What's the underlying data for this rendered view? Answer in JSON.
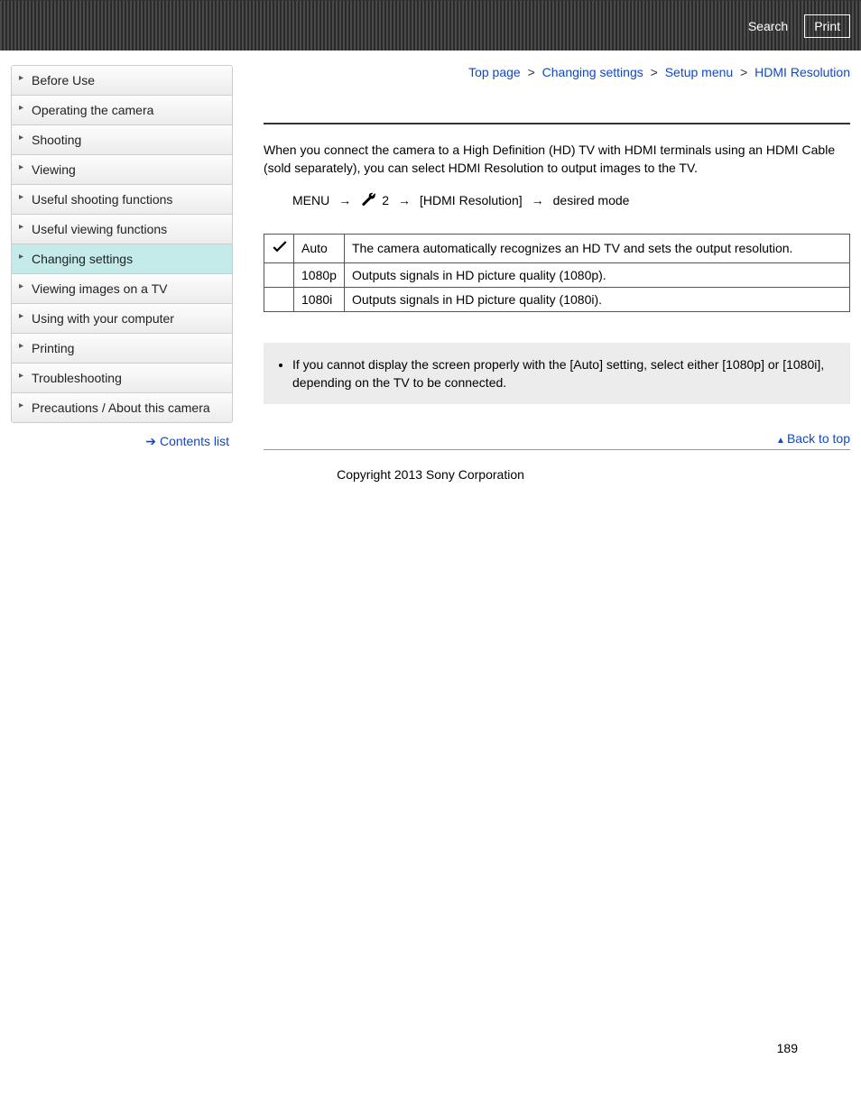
{
  "topbar": {
    "search": "Search",
    "print": "Print"
  },
  "sidebar": {
    "items": [
      {
        "label": "Before Use"
      },
      {
        "label": "Operating the camera"
      },
      {
        "label": "Shooting"
      },
      {
        "label": "Viewing"
      },
      {
        "label": "Useful shooting functions"
      },
      {
        "label": "Useful viewing functions"
      },
      {
        "label": "Changing settings",
        "active": true
      },
      {
        "label": "Viewing images on a TV"
      },
      {
        "label": "Using with your computer"
      },
      {
        "label": "Printing"
      },
      {
        "label": "Troubleshooting"
      },
      {
        "label": "Precautions / About this camera"
      }
    ],
    "contents_list": "Contents list"
  },
  "breadcrumb": {
    "items": [
      "Top page",
      "Changing settings",
      "Setup menu"
    ],
    "current": "HDMI Resolution",
    "sep": ">"
  },
  "body": {
    "intro": "When you connect the camera to a High Definition (HD) TV with HDMI terminals using an HDMI Cable (sold separately), you can select HDMI Resolution to output images to the TV.",
    "path_menu": "MENU",
    "path_num": "2",
    "path_item": "[HDMI Resolution]",
    "path_target": "desired mode"
  },
  "table": {
    "rows": [
      {
        "has_check": true,
        "label": "Auto",
        "desc": "The camera automatically recognizes an HD TV and sets the output resolution."
      },
      {
        "has_check": false,
        "label": "1080p",
        "desc": "Outputs signals in HD picture quality (1080p)."
      },
      {
        "has_check": false,
        "label": "1080i",
        "desc": "Outputs signals in HD picture quality (1080i)."
      }
    ]
  },
  "notes": {
    "items": [
      "If you cannot display the screen properly with the [Auto] setting, select either [1080p] or [1080i], depending on the TV to be connected."
    ]
  },
  "footer": {
    "back_to_top": "Back to top",
    "copyright": "Copyright 2013 Sony Corporation",
    "page_num": "189"
  }
}
